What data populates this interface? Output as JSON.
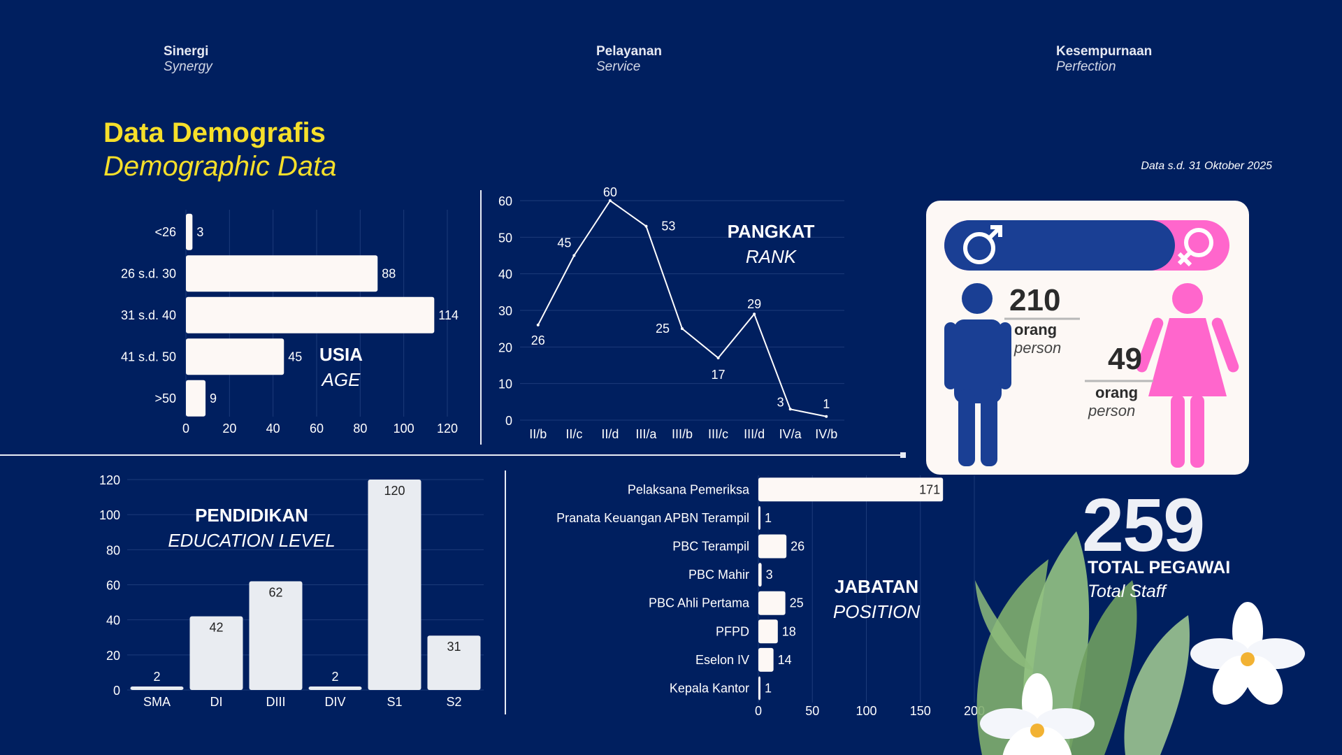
{
  "header": {
    "mottos": [
      {
        "id": "sinergi",
        "label": "Sinergi",
        "translation": "Synergy"
      },
      {
        "id": "pelayanan",
        "label": "Pelayanan",
        "translation": "Service"
      },
      {
        "id": "kesempurnaan",
        "label": "Kesempurnaan",
        "translation": "Perfection"
      }
    ]
  },
  "title": {
    "main": "Data Demografis",
    "sub": "Demographic Data"
  },
  "date_note": "Data s.d. 31 Oktober 2025",
  "gender": {
    "male": {
      "count": "210",
      "unit": "orang",
      "unit_en": "person",
      "color": "#1a3f94"
    },
    "female": {
      "count": "49",
      "unit": "orang",
      "unit_en": "person",
      "color": "#ff66cc"
    },
    "male_share": 0.81
  },
  "total": {
    "count": "259",
    "label": "TOTAL PEGAWAI",
    "label_en": "Total Staff"
  },
  "colors": {
    "background": "#001f5f",
    "title": "#f6df2a",
    "bar": "#fdf8f5"
  },
  "chart_data": [
    {
      "id": "age",
      "type": "bar",
      "orientation": "horizontal",
      "title": "USIA",
      "subtitle": "AGE",
      "categories": [
        "<26",
        "26 s.d. 30",
        "31 s.d. 40",
        "41 s.d. 50",
        ">50"
      ],
      "values": [
        3,
        88,
        114,
        45,
        9
      ],
      "xlim": [
        0,
        120
      ],
      "xticks": [
        0,
        20,
        40,
        60,
        80,
        100,
        120
      ],
      "grid": true
    },
    {
      "id": "rank",
      "type": "line",
      "title": "PANGKAT",
      "subtitle": "RANK",
      "categories": [
        "II/b",
        "II/c",
        "II/d",
        "III/a",
        "III/b",
        "III/c",
        "III/d",
        "IV/a",
        "IV/b"
      ],
      "values": [
        26,
        45,
        60,
        53,
        25,
        17,
        29,
        3,
        1
      ],
      "ylim": [
        0,
        60
      ],
      "yticks": [
        0,
        10,
        20,
        30,
        40,
        50,
        60
      ],
      "grid": true
    },
    {
      "id": "education",
      "type": "bar",
      "orientation": "vertical",
      "title": "PENDIDIKAN",
      "subtitle": "EDUCATION LEVEL",
      "categories": [
        "SMA",
        "DI",
        "DIII",
        "DIV",
        "S1",
        "S2"
      ],
      "values": [
        2,
        42,
        62,
        2,
        120,
        31
      ],
      "ylim": [
        0,
        120
      ],
      "yticks": [
        0,
        20,
        40,
        60,
        80,
        100,
        120
      ],
      "grid": true
    },
    {
      "id": "position",
      "type": "bar",
      "orientation": "horizontal",
      "title": "JABATAN",
      "subtitle": "POSITION",
      "categories": [
        "Pelaksana Pemeriksa",
        "Pranata Keuangan APBN Terampil",
        "PBC Terampil",
        "PBC Mahir",
        "PBC Ahli Pertama",
        "PFPD",
        "Eselon IV",
        "Kepala Kantor"
      ],
      "values": [
        171,
        1,
        26,
        3,
        25,
        18,
        14,
        1
      ],
      "xlim": [
        0,
        200
      ],
      "xticks": [
        0,
        50,
        100,
        150,
        200
      ],
      "grid": true
    }
  ]
}
